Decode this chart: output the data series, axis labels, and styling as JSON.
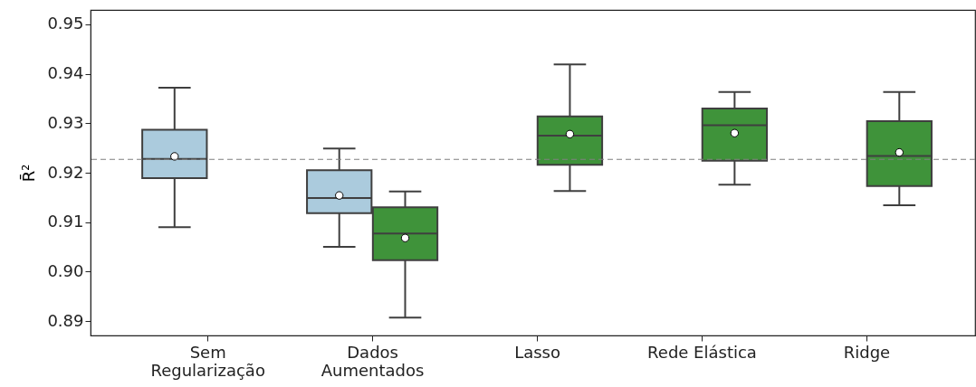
{
  "chart_data": {
    "type": "box",
    "categories": [
      "Sem\nRegularização",
      "Dados\nAumentados",
      "Lasso",
      "Rede Elástica",
      "Ridge"
    ],
    "ylabel": "R̄²",
    "ylim": [
      0.8871,
      0.9529
    ],
    "yticks": [
      {
        "value": 0.89,
        "label": "0.89"
      },
      {
        "value": 0.9,
        "label": "0.90"
      },
      {
        "value": 0.91,
        "label": "0.91"
      },
      {
        "value": 0.92,
        "label": "0.92"
      },
      {
        "value": 0.93,
        "label": "0.93"
      },
      {
        "value": 0.94,
        "label": "0.94"
      },
      {
        "value": 0.95,
        "label": "0.95"
      }
    ],
    "grid": false,
    "series": [
      {
        "color": "#abcbdd",
        "boxes": [
          {
            "low": 0.909,
            "q1": 0.9189,
            "median": 0.9228,
            "q3": 0.9287,
            "high": 0.9372,
            "mean": 0.9233
          },
          {
            "low": 0.905,
            "q1": 0.9118,
            "median": 0.9149,
            "q3": 0.9205,
            "high": 0.9249,
            "mean": 0.9154
          },
          null,
          null,
          null
        ]
      },
      {
        "color": "#3f933a",
        "boxes": [
          null,
          {
            "low": 0.8907,
            "q1": 0.9023,
            "median": 0.9077,
            "q3": 0.913,
            "high": 0.9162,
            "mean": 0.9068
          },
          {
            "low": 0.9163,
            "q1": 0.9216,
            "median": 0.9275,
            "q3": 0.9314,
            "high": 0.9419,
            "mean": 0.9278
          },
          {
            "low": 0.9176,
            "q1": 0.9224,
            "median": 0.9296,
            "q3": 0.933,
            "high": 0.9363,
            "mean": 0.928
          },
          {
            "low": 0.9134,
            "q1": 0.9173,
            "median": 0.9234,
            "q3": 0.9304,
            "high": 0.9363,
            "mean": 0.9241
          }
        ]
      }
    ],
    "ref_lines": [
      {
        "axis": "y",
        "value": 0.9227,
        "color": "#808080",
        "line_style": "dashed"
      }
    ]
  }
}
